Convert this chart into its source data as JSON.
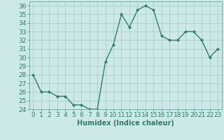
{
  "x": [
    0,
    1,
    2,
    3,
    4,
    5,
    6,
    7,
    8,
    9,
    10,
    11,
    12,
    13,
    14,
    15,
    16,
    17,
    18,
    19,
    20,
    21,
    22,
    23
  ],
  "y": [
    28,
    26,
    26,
    25.5,
    25.5,
    24.5,
    24.5,
    24,
    24,
    29.5,
    31.5,
    35,
    33.5,
    35.5,
    36,
    35.5,
    32.5,
    32,
    32,
    33,
    33,
    32,
    30,
    31
  ],
  "line_color": "#2e7d6e",
  "marker": "D",
  "marker_size": 2.0,
  "line_width": 1.0,
  "bg_color": "#cde8e8",
  "grid_color": "#aacece",
  "xlabel": "Humidex (Indice chaleur)",
  "xlim": [
    -0.5,
    23.5
  ],
  "ylim": [
    24,
    36.5
  ],
  "yticks": [
    24,
    25,
    26,
    27,
    28,
    29,
    30,
    31,
    32,
    33,
    34,
    35,
    36
  ],
  "xticks": [
    0,
    1,
    2,
    3,
    4,
    5,
    6,
    7,
    8,
    9,
    10,
    11,
    12,
    13,
    14,
    15,
    16,
    17,
    18,
    19,
    20,
    21,
    22,
    23
  ],
  "xlabel_fontsize": 7,
  "tick_fontsize": 6.5,
  "spine_color": "#7aabab"
}
